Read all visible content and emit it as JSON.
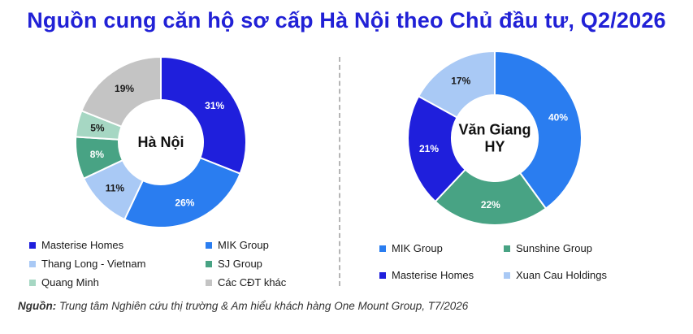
{
  "title": "Nguồn cung căn hộ sơ cấp Hà Nội theo Chủ đầu tư, Q2/2026",
  "source": {
    "label": "Nguồn:",
    "text": "Trung tâm Nghiên cứu thị trường & Am hiểu khách hàng One Mount Group, T7/2026"
  },
  "chart_data": [
    {
      "type": "pie",
      "center_label": [
        "Hà Nội"
      ],
      "slices": [
        {
          "name": "Masterise Homes",
          "value": 31,
          "label": "31%",
          "color": "#1f1fdc",
          "text_color": "#ffffff"
        },
        {
          "name": "MIK Group",
          "value": 26,
          "label": "26%",
          "color": "#2a7df0",
          "text_color": "#ffffff"
        },
        {
          "name": "Thang Long - Vietnam",
          "value": 11,
          "label": "11%",
          "color": "#a9c9f5",
          "text_color": "#1a1a1a"
        },
        {
          "name": "SJ Group",
          "value": 8,
          "label": "8%",
          "color": "#48a384",
          "text_color": "#ffffff"
        },
        {
          "name": "Quang Minh",
          "value": 5,
          "label": "5%",
          "color": "#a6d7c3",
          "text_color": "#1a1a1a"
        },
        {
          "name": "Các CĐT khác",
          "value": 19,
          "label": "19%",
          "color": "#c4c4c4",
          "text_color": "#1a1a1a"
        }
      ]
    },
    {
      "type": "pie",
      "center_label": [
        "Văn Giang",
        "HY"
      ],
      "slices": [
        {
          "name": "MIK Group",
          "value": 40,
          "label": "40%",
          "color": "#2a7df0",
          "text_color": "#ffffff"
        },
        {
          "name": "Sunshine Group",
          "value": 22,
          "label": "22%",
          "color": "#48a384",
          "text_color": "#ffffff"
        },
        {
          "name": "Masterise Homes",
          "value": 21,
          "label": "21%",
          "color": "#1f1fdc",
          "text_color": "#ffffff"
        },
        {
          "name": "Xuan Cau Holdings",
          "value": 17,
          "label": "17%",
          "color": "#a9c9f5",
          "text_color": "#1a1a1a"
        }
      ]
    }
  ]
}
